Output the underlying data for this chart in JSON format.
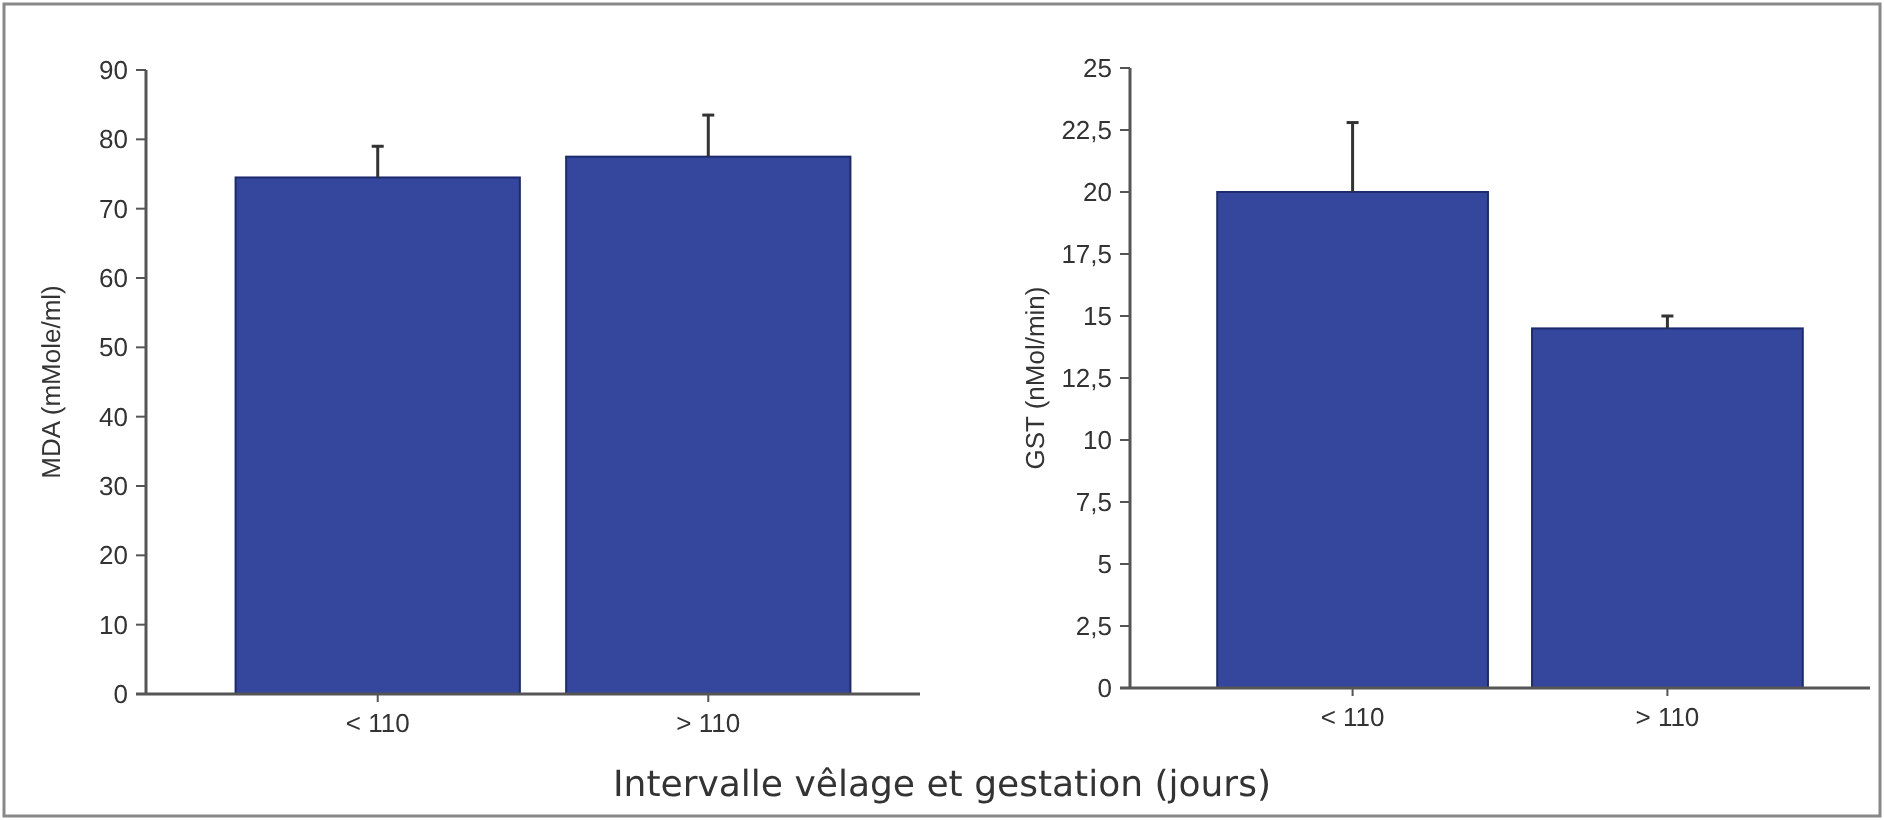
{
  "chart_data": [
    {
      "type": "bar",
      "ylabel": "MDA (mMole/ml)",
      "xlabel": "Intervalle vêlage et gestation (jours)",
      "categories": [
        "< 110",
        "> 110"
      ],
      "values": [
        74.5,
        77.5
      ],
      "errors": [
        4.5,
        6
      ],
      "color": "#34479c",
      "ylim": [
        0,
        90
      ],
      "yticks": [
        0,
        10,
        20,
        30,
        40,
        50,
        60,
        70,
        80,
        90
      ],
      "grid": false
    },
    {
      "type": "bar",
      "ylabel": "GST (nMol/min)",
      "categories": [
        "< 110",
        "> 110"
      ],
      "values": [
        20,
        14.5
      ],
      "errors": [
        2.8,
        0.5
      ],
      "color": "#34479c",
      "ylim": [
        0,
        25
      ],
      "yticks": [
        0,
        {
          "value": 2.5,
          "label": "2,5"
        },
        5,
        {
          "value": 7.5,
          "label": "7,5"
        },
        10,
        {
          "value": 12.5,
          "label": "12,5"
        },
        15,
        {
          "value": 17.5,
          "label": "17,5"
        },
        20,
        {
          "value": 22.5,
          "label": "22,5"
        },
        25
      ],
      "grid": false
    }
  ]
}
